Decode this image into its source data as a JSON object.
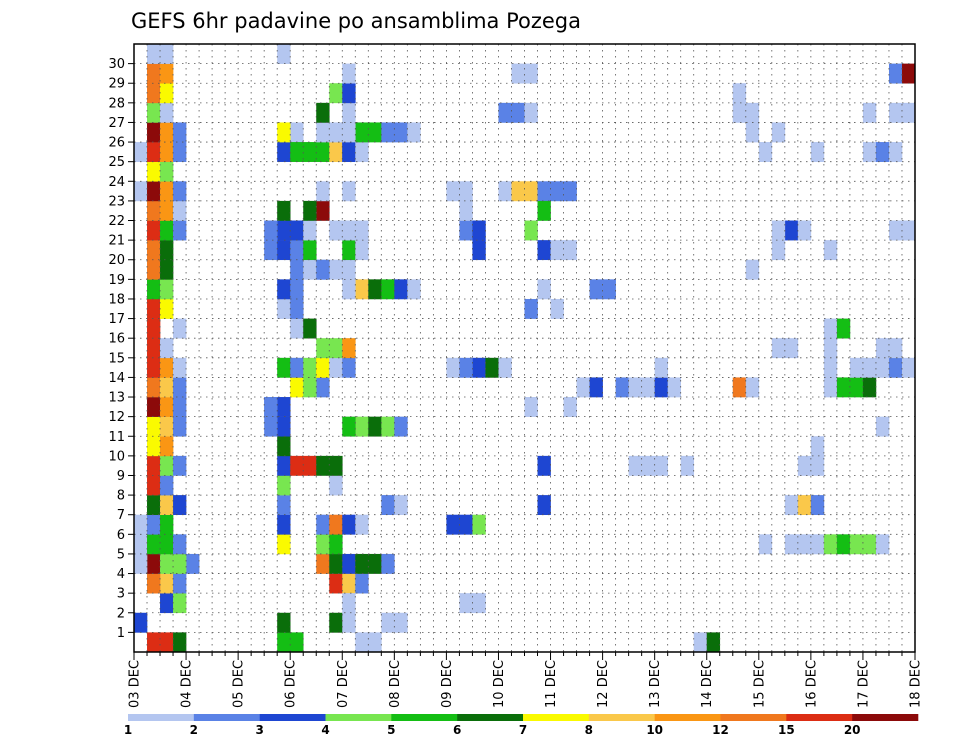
{
  "chart_data": {
    "type": "heatmap",
    "title": "GEFS 6hr padavine po ansamblima Pozega",
    "xlabel": "",
    "ylabel": "",
    "x_ticks": [
      "03 DEC",
      "04 DEC",
      "05 DEC",
      "06 DEC",
      "07 DEC",
      "08 DEC",
      "09 DEC",
      "10 DEC",
      "11 DEC",
      "12 DEC",
      "13 DEC",
      "14 DEC",
      "15 DEC",
      "16 DEC",
      "17 DEC",
      "18 DEC"
    ],
    "y_ticks": [
      1,
      2,
      3,
      4,
      5,
      6,
      7,
      8,
      9,
      10,
      11,
      12,
      13,
      14,
      15,
      16,
      17,
      18,
      19,
      20,
      21,
      22,
      23,
      24,
      25,
      26,
      27,
      28,
      29,
      30
    ],
    "time_step_hours": 6,
    "grid": true,
    "colorbar": {
      "placement": "bottom",
      "labels": [
        "1",
        "2",
        "3",
        "4",
        "5",
        "6",
        "7",
        "8",
        "10",
        "12",
        "15",
        "20"
      ],
      "colors": [
        "#b4c6f0",
        "#5a82e6",
        "#1e46d2",
        "#78e650",
        "#14be14",
        "#0a6e0a",
        "#fafa00",
        "#fac84a",
        "#fa9614",
        "#f0781e",
        "#dc2d14",
        "#8c0a0a"
      ]
    },
    "cells": [
      [
        0,
        1,
        3
      ],
      [
        2,
        2,
        3
      ],
      [
        2,
        3,
        8
      ],
      [
        1,
        3,
        10
      ],
      [
        1,
        4,
        12
      ],
      [
        2,
        4,
        4
      ],
      [
        0,
        5,
        1
      ],
      [
        1,
        5,
        5
      ],
      [
        2,
        5,
        5
      ],
      [
        0,
        6,
        1
      ],
      [
        1,
        6,
        2
      ],
      [
        2,
        6,
        5
      ],
      [
        1,
        7,
        6
      ],
      [
        2,
        7,
        8
      ],
      [
        1,
        8,
        11
      ],
      [
        2,
        8,
        2
      ],
      [
        1,
        9,
        11
      ],
      [
        2,
        9,
        4
      ],
      [
        1,
        10,
        7
      ],
      [
        2,
        10,
        9
      ],
      [
        1,
        11,
        7
      ],
      [
        2,
        11,
        8
      ],
      [
        1,
        12,
        12
      ],
      [
        2,
        12,
        9
      ],
      [
        1,
        13,
        10
      ],
      [
        2,
        13,
        8
      ],
      [
        1,
        14,
        11
      ],
      [
        2,
        14,
        9
      ],
      [
        1,
        15,
        11
      ],
      [
        2,
        15,
        1
      ],
      [
        1,
        16,
        11
      ],
      [
        1,
        17,
        11
      ],
      [
        2,
        17,
        7
      ],
      [
        1,
        18,
        5
      ],
      [
        2,
        18,
        4
      ],
      [
        1,
        19,
        10
      ],
      [
        2,
        19,
        6
      ],
      [
        1,
        20,
        10
      ],
      [
        2,
        20,
        6
      ],
      [
        1,
        21,
        11
      ],
      [
        2,
        21,
        5
      ],
      [
        1,
        22,
        10
      ],
      [
        2,
        22,
        9
      ],
      [
        0,
        23,
        1
      ],
      [
        1,
        23,
        12
      ],
      [
        2,
        23,
        9
      ],
      [
        1,
        24,
        7
      ],
      [
        2,
        24,
        4
      ],
      [
        0,
        25,
        1
      ],
      [
        1,
        25,
        11
      ],
      [
        2,
        25,
        9
      ],
      [
        1,
        26,
        12
      ],
      [
        2,
        26,
        9
      ],
      [
        1,
        27,
        4
      ],
      [
        2,
        27,
        1
      ],
      [
        1,
        28,
        10
      ],
      [
        2,
        28,
        7
      ],
      [
        1,
        29,
        10
      ],
      [
        2,
        29,
        9
      ],
      [
        1,
        30,
        1
      ],
      [
        2,
        30,
        1
      ],
      [
        1,
        0,
        11
      ],
      [
        2,
        0,
        11
      ],
      [
        3,
        0,
        6
      ],
      [
        3,
        2,
        4
      ],
      [
        3,
        3,
        2
      ],
      [
        4,
        4,
        2
      ],
      [
        3,
        4,
        4
      ],
      [
        0,
        4,
        1
      ],
      [
        3,
        5,
        2
      ],
      [
        3,
        7,
        3
      ],
      [
        3,
        9,
        2
      ],
      [
        3,
        11,
        2
      ],
      [
        3,
        12,
        2
      ],
      [
        3,
        13,
        2
      ],
      [
        3,
        14,
        1
      ],
      [
        3,
        16,
        1
      ],
      [
        3,
        21,
        2
      ],
      [
        3,
        22,
        1
      ],
      [
        3,
        23,
        2
      ],
      [
        3,
        25,
        2
      ],
      [
        3,
        26,
        2
      ],
      [
        11,
        0,
        5
      ],
      [
        12,
        0,
        5
      ],
      [
        11,
        1,
        6
      ],
      [
        11,
        5,
        7
      ],
      [
        11,
        6,
        3
      ],
      [
        11,
        7,
        2
      ],
      [
        11,
        8,
        4
      ],
      [
        11,
        9,
        3
      ],
      [
        11,
        10,
        6
      ],
      [
        11,
        11,
        3
      ],
      [
        11,
        12,
        3
      ],
      [
        10,
        12,
        2
      ],
      [
        10,
        11,
        2
      ],
      [
        10,
        12,
        2
      ],
      [
        11,
        14,
        5
      ],
      [
        11,
        17,
        1
      ],
      [
        11,
        18,
        3
      ],
      [
        12,
        18,
        2
      ],
      [
        10,
        20,
        2
      ],
      [
        11,
        20,
        3
      ],
      [
        11,
        21,
        3
      ],
      [
        10,
        21,
        2
      ],
      [
        11,
        22,
        6
      ],
      [
        11,
        25,
        3
      ],
      [
        12,
        26,
        1
      ],
      [
        11,
        26,
        7
      ],
      [
        11,
        30,
        1
      ],
      [
        12,
        9,
        11
      ],
      [
        13,
        9,
        11
      ],
      [
        14,
        9,
        6
      ],
      [
        12,
        13,
        7
      ],
      [
        12,
        14,
        2
      ],
      [
        14,
        13,
        2
      ],
      [
        13,
        13,
        4
      ],
      [
        13,
        14,
        4
      ],
      [
        14,
        14,
        9
      ],
      [
        12,
        16,
        1
      ],
      [
        13,
        16,
        6
      ],
      [
        12,
        17,
        2
      ],
      [
        12,
        19,
        2
      ],
      [
        13,
        19,
        1
      ],
      [
        14,
        19,
        1
      ],
      [
        12,
        20,
        2
      ],
      [
        13,
        20,
        5
      ],
      [
        12,
        21,
        3
      ],
      [
        13,
        21,
        1
      ],
      [
        14,
        22,
        12
      ],
      [
        13,
        22,
        6
      ],
      [
        14,
        23,
        1
      ],
      [
        12,
        25,
        5
      ],
      [
        14,
        25,
        5
      ],
      [
        13,
        25,
        5
      ],
      [
        15,
        25,
        8
      ],
      [
        16,
        25,
        3
      ],
      [
        15,
        26,
        1
      ],
      [
        14,
        26,
        1
      ],
      [
        14,
        27,
        6
      ],
      [
        15,
        1,
        6
      ],
      [
        15,
        3,
        11
      ],
      [
        16,
        3,
        8
      ],
      [
        16,
        2,
        1
      ],
      [
        17,
        3,
        2
      ],
      [
        14,
        4,
        10
      ],
      [
        15,
        4,
        6
      ],
      [
        16,
        4,
        3
      ],
      [
        17,
        4,
        6
      ],
      [
        18,
        4,
        6
      ],
      [
        19,
        4,
        2
      ],
      [
        14,
        5,
        4
      ],
      [
        15,
        5,
        5
      ],
      [
        14,
        6,
        2
      ],
      [
        15,
        6,
        10
      ],
      [
        16,
        6,
        3
      ],
      [
        17,
        6,
        1
      ],
      [
        15,
        8,
        1
      ],
      [
        15,
        9,
        6
      ],
      [
        17,
        11,
        4
      ],
      [
        18,
        11,
        6
      ],
      [
        19,
        11,
        4
      ],
      [
        20,
        11,
        2
      ],
      [
        16,
        11,
        5
      ],
      [
        14,
        14,
        7
      ],
      [
        15,
        14,
        1
      ],
      [
        16,
        14,
        2
      ],
      [
        15,
        15,
        4
      ],
      [
        14,
        15,
        4
      ],
      [
        16,
        15,
        9
      ],
      [
        17,
        18,
        8
      ],
      [
        18,
        18,
        6
      ],
      [
        19,
        18,
        5
      ],
      [
        20,
        18,
        3
      ],
      [
        21,
        18,
        1
      ],
      [
        16,
        18,
        1
      ],
      [
        15,
        19,
        1
      ],
      [
        16,
        19,
        1
      ],
      [
        14,
        19,
        2
      ],
      [
        16,
        20,
        5
      ],
      [
        17,
        20,
        1
      ],
      [
        17,
        21,
        1
      ],
      [
        15,
        21,
        1
      ],
      [
        16,
        21,
        1
      ],
      [
        16,
        23,
        1
      ],
      [
        16,
        25,
        3
      ],
      [
        17,
        25,
        1
      ],
      [
        17,
        26,
        5
      ],
      [
        18,
        26,
        5
      ],
      [
        19,
        26,
        2
      ],
      [
        20,
        26,
        2
      ],
      [
        21,
        26,
        1
      ],
      [
        16,
        26,
        1
      ],
      [
        16,
        27,
        1
      ],
      [
        16,
        28,
        1
      ],
      [
        15,
        28,
        4
      ],
      [
        16,
        28,
        3
      ],
      [
        16,
        29,
        1
      ],
      [
        17,
        0,
        1
      ],
      [
        18,
        0,
        1
      ],
      [
        16,
        1,
        1
      ],
      [
        19,
        1,
        1
      ],
      [
        20,
        1,
        1
      ],
      [
        19,
        7,
        2
      ],
      [
        20,
        7,
        1
      ],
      [
        25,
        2,
        1
      ],
      [
        26,
        2,
        1
      ],
      [
        24,
        6,
        3
      ],
      [
        25,
        6,
        3
      ],
      [
        26,
        6,
        4
      ],
      [
        24,
        14,
        1
      ],
      [
        26,
        14,
        3
      ],
      [
        27,
        14,
        6
      ],
      [
        28,
        14,
        1
      ],
      [
        25,
        14,
        2
      ],
      [
        26,
        20,
        3
      ],
      [
        25,
        21,
        2
      ],
      [
        26,
        21,
        3
      ],
      [
        25,
        22,
        1
      ],
      [
        25,
        23,
        1
      ],
      [
        24,
        23,
        1
      ],
      [
        28,
        23,
        1
      ],
      [
        29,
        23,
        8
      ],
      [
        30,
        23,
        8
      ],
      [
        31,
        23,
        2
      ],
      [
        28,
        27,
        2
      ],
      [
        29,
        27,
        2
      ],
      [
        30,
        27,
        1
      ],
      [
        30,
        29,
        1
      ],
      [
        29,
        29,
        1
      ],
      [
        31,
        7,
        3
      ],
      [
        31,
        9,
        3
      ],
      [
        30,
        12,
        1
      ],
      [
        30,
        17,
        2
      ],
      [
        31,
        18,
        1
      ],
      [
        31,
        20,
        3
      ],
      [
        32,
        20,
        1
      ],
      [
        33,
        20,
        1
      ],
      [
        30,
        21,
        4
      ],
      [
        32,
        23,
        2
      ],
      [
        33,
        23,
        2
      ],
      [
        31,
        22,
        5
      ],
      [
        32,
        17,
        1
      ],
      [
        33,
        12,
        1
      ],
      [
        34,
        13,
        1
      ],
      [
        35,
        13,
        3
      ],
      [
        35,
        18,
        2
      ],
      [
        36,
        18,
        2
      ],
      [
        38,
        9,
        1
      ],
      [
        39,
        9,
        1
      ],
      [
        40,
        9,
        1
      ],
      [
        37,
        13,
        2
      ],
      [
        38,
        13,
        1
      ],
      [
        39,
        13,
        1
      ],
      [
        40,
        13,
        3
      ],
      [
        41,
        13,
        1
      ],
      [
        40,
        14,
        1
      ],
      [
        42,
        9,
        1
      ],
      [
        43,
        0,
        1
      ],
      [
        44,
        0,
        6
      ],
      [
        46,
        13,
        10
      ],
      [
        47,
        13,
        1
      ],
      [
        48,
        5,
        1
      ],
      [
        50,
        5,
        1
      ],
      [
        51,
        5,
        1
      ],
      [
        52,
        5,
        1
      ],
      [
        53,
        5,
        4
      ],
      [
        54,
        5,
        5
      ],
      [
        55,
        5,
        4
      ],
      [
        56,
        5,
        4
      ],
      [
        57,
        5,
        1
      ],
      [
        50,
        7,
        1
      ],
      [
        51,
        7,
        8
      ],
      [
        52,
        7,
        2
      ],
      [
        51,
        9,
        1
      ],
      [
        52,
        9,
        1
      ],
      [
        50,
        15,
        1
      ],
      [
        49,
        15,
        1
      ],
      [
        53,
        13,
        1
      ],
      [
        53,
        14,
        1
      ],
      [
        53,
        15,
        1
      ],
      [
        54,
        13,
        5
      ],
      [
        55,
        13,
        5
      ],
      [
        56,
        13,
        6
      ],
      [
        55,
        14,
        1
      ],
      [
        56,
        14,
        1
      ],
      [
        57,
        14,
        1
      ],
      [
        58,
        14,
        2
      ],
      [
        58,
        15,
        1
      ],
      [
        57,
        15,
        1
      ],
      [
        53,
        16,
        1
      ],
      [
        54,
        16,
        5
      ],
      [
        50,
        21,
        3
      ],
      [
        49,
        21,
        1
      ],
      [
        51,
        21,
        1
      ],
      [
        47,
        19,
        1
      ],
      [
        52,
        25,
        1
      ],
      [
        56,
        25,
        1
      ],
      [
        57,
        25,
        2
      ],
      [
        58,
        25,
        1
      ],
      [
        48,
        25,
        1
      ],
      [
        47,
        26,
        1
      ],
      [
        49,
        26,
        1
      ],
      [
        46,
        27,
        1
      ],
      [
        47,
        27,
        1
      ],
      [
        46,
        28,
        1
      ],
      [
        56,
        27,
        1
      ],
      [
        58,
        27,
        1
      ],
      [
        59,
        27,
        1
      ],
      [
        49,
        20,
        1
      ],
      [
        53,
        20,
        1
      ],
      [
        58,
        21,
        1
      ],
      [
        59,
        21,
        1
      ],
      [
        57,
        11,
        1
      ],
      [
        52,
        10,
        1
      ],
      [
        59,
        14,
        1
      ],
      [
        58,
        29,
        2
      ],
      [
        59,
        29,
        12
      ]
    ]
  }
}
